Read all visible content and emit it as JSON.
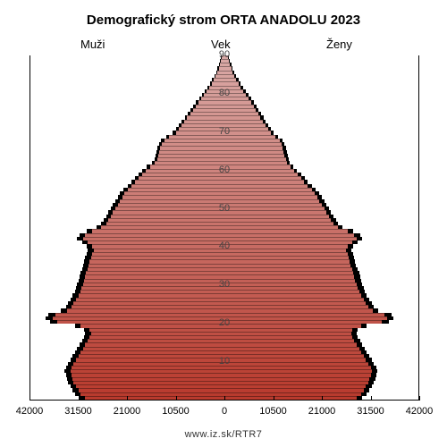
{
  "title": "Demografický strom ORTA ANADOLU 2023",
  "label_men": "Muži",
  "label_age": "Vek",
  "label_women": "Ženy",
  "footer": "www.iz.sk/RTR7",
  "chart": {
    "type": "population-pyramid",
    "background_color": "#ffffff",
    "outline_color": "#000000",
    "title_fontsize": 15,
    "label_fontsize": 13,
    "tick_fontsize": 11,
    "x_max": 42000,
    "x_ticks": [
      42000,
      31500,
      21000,
      10500,
      0,
      10500,
      21000,
      31500,
      42000
    ],
    "age_ticks": [
      10,
      20,
      30,
      40,
      50,
      60,
      70,
      80,
      90
    ],
    "color_bottom": "#b93a2d",
    "color_top": "#d9a9a6",
    "men": [
      30000,
      31000,
      31500,
      32000,
      32500,
      32800,
      33000,
      33200,
      33000,
      32500,
      32000,
      31500,
      31000,
      30500,
      30000,
      29500,
      29000,
      28800,
      29000,
      31000,
      36000,
      37000,
      36500,
      34000,
      33000,
      32500,
      32000,
      31500,
      31000,
      30800,
      30500,
      30200,
      30000,
      29800,
      29500,
      29200,
      29000,
      28800,
      28500,
      28200,
      28500,
      29500,
      30500,
      30000,
      28500,
      26500,
      25500,
      25000,
      24500,
      24000,
      23500,
      23000,
      22500,
      22000,
      21500,
      20800,
      20000,
      19200,
      18500,
      17800,
      17000,
      16000,
      15000,
      14500,
      14200,
      14000,
      13800,
      13500,
      13000,
      12000,
      10500,
      9800,
      9200,
      8600,
      8000,
      7400,
      6800,
      6200,
      5600,
      5000,
      4400,
      3800,
      3200,
      2700,
      2300,
      1900,
      1500,
      1200,
      900,
      700,
      500
    ],
    "women": [
      28500,
      29500,
      30000,
      30500,
      31000,
      31300,
      31500,
      31700,
      31500,
      31000,
      30500,
      30000,
      29500,
      29000,
      28500,
      28000,
      27500,
      27300,
      27500,
      29500,
      34000,
      35000,
      34500,
      32000,
      31000,
      30500,
      30000,
      29500,
      29000,
      28800,
      28500,
      28200,
      28000,
      27800,
      27500,
      27200,
      27000,
      26800,
      26500,
      26200,
      26500,
      27500,
      28500,
      28000,
      26500,
      24500,
      23500,
      23000,
      22500,
      22000,
      21500,
      21000,
      20500,
      20000,
      19500,
      18800,
      18000,
      17200,
      16500,
      15800,
      15000,
      14200,
      13500,
      13200,
      13000,
      12800,
      12600,
      12400,
      12000,
      11000,
      10000,
      9400,
      8800,
      8300,
      7800,
      7300,
      6800,
      6300,
      5800,
      5200,
      4600,
      4000,
      3500,
      3000,
      2600,
      2200,
      1800,
      1500,
      1200,
      900,
      700
    ],
    "men_outline": [
      31200,
      32200,
      32700,
      33200,
      33700,
      34000,
      34200,
      34400,
      34200,
      33700,
      33200,
      32700,
      32200,
      31700,
      31200,
      30700,
      30200,
      30000,
      30200,
      32200,
      37500,
      38500,
      38000,
      35200,
      34200,
      33700,
      33200,
      32700,
      32200,
      32000,
      31700,
      31400,
      31200,
      31000,
      30700,
      30400,
      30200,
      30000,
      29700,
      29400,
      29700,
      30700,
      31700,
      31200,
      29700,
      27500,
      26500,
      26000,
      25500,
      25000,
      24500,
      24000,
      23500,
      23000,
      22500,
      21700,
      20800,
      20000,
      19300,
      18500,
      17700,
      16700,
      15600,
      15100,
      14800,
      14600,
      14400,
      14100,
      13600,
      12600,
      11100,
      10400,
      9800,
      9200,
      8500,
      7900,
      7300,
      6700,
      6100,
      5400,
      4800,
      4200,
      3600,
      3100,
      2700,
      2200,
      1800,
      1500,
      1200,
      900,
      700
    ],
    "women_outline": [
      29700,
      30700,
      31200,
      31700,
      32200,
      32500,
      32700,
      32900,
      32700,
      32200,
      31700,
      31200,
      30700,
      30200,
      29700,
      29200,
      28700,
      28500,
      28700,
      30700,
      35500,
      36500,
      36000,
      33200,
      32200,
      31700,
      31200,
      30700,
      30200,
      30000,
      29700,
      29400,
      29200,
      29000,
      28700,
      28400,
      28200,
      28000,
      27700,
      27400,
      27700,
      28700,
      29700,
      29200,
      27700,
      25500,
      24500,
      24000,
      23500,
      23000,
      22500,
      22000,
      21500,
      21000,
      20500,
      19700,
      18800,
      18000,
      17300,
      16500,
      15700,
      14900,
      14100,
      13800,
      13600,
      13400,
      13200,
      13000,
      12600,
      11600,
      10600,
      10000,
      9400,
      8900,
      8400,
      7900,
      7400,
      6900,
      6400,
      5800,
      5200,
      4600,
      4000,
      3500,
      3000,
      2600,
      2200,
      1800,
      1500,
      1200,
      900
    ]
  }
}
